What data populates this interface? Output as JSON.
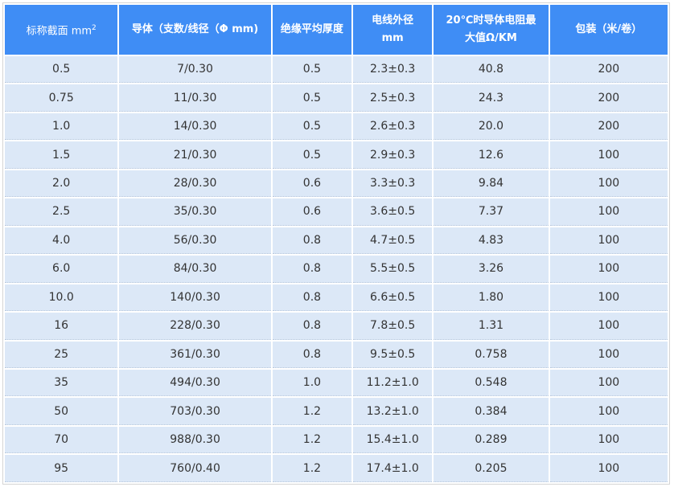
{
  "header": {
    "col1": "标称截面 mm",
    "col1_sup": "2",
    "col2": "导体（支数/线径（Φ mm)",
    "col3": "绝缘平均厚度",
    "col4_line1": "电线外径",
    "col4_line2": "mm",
    "col5_line1": "20℃时导体电阻最",
    "col5_line2": "大值Ω/KM",
    "col6": "包装（米/卷）"
  },
  "rows": [
    [
      "0.5",
      "7/0.30",
      "0.5",
      "2.3±0.3",
      "40.8",
      "200"
    ],
    [
      "0.75",
      "11/0.30",
      "0.5",
      "2.5±0.3",
      "24.3",
      "200"
    ],
    [
      "1.0",
      "14/0.30",
      "0.5",
      "2.6±0.3",
      "20.0",
      "200"
    ],
    [
      "1.5",
      "21/0.30",
      "0.5",
      "2.9±0.3",
      "12.6",
      "100"
    ],
    [
      "2.0",
      "28/0.30",
      "0.6",
      "3.3±0.3",
      "9.84",
      "100"
    ],
    [
      "2.5",
      "35/0.30",
      "0.6",
      "3.6±0.5",
      "7.37",
      "100"
    ],
    [
      "4.0",
      "56/0.30",
      "0.8",
      "4.7±0.5",
      "4.83",
      "100"
    ],
    [
      "6.0",
      "84/0.30",
      "0.8",
      "5.5±0.5",
      "3.26",
      "100"
    ],
    [
      "10.0",
      "140/0.30",
      "0.8",
      "6.6±0.5",
      "1.80",
      "100"
    ],
    [
      "16",
      "228/0.30",
      "0.8",
      "7.8±0.5",
      "1.31",
      "100"
    ],
    [
      "25",
      "361/0.30",
      "0.8",
      "9.5±0.5",
      "0.758",
      "100"
    ],
    [
      "35",
      "494/0.30",
      "1.0",
      "11.2±1.0",
      "0.548",
      "100"
    ],
    [
      "50",
      "703/0.30",
      "1.2",
      "13.2±1.0",
      "0.384",
      "100"
    ],
    [
      "70",
      "988/0.30",
      "1.2",
      "15.4±1.0",
      "0.289",
      "100"
    ],
    [
      "95",
      "760/0.40",
      "1.2",
      "17.4±1.0",
      "0.205",
      "100"
    ]
  ]
}
